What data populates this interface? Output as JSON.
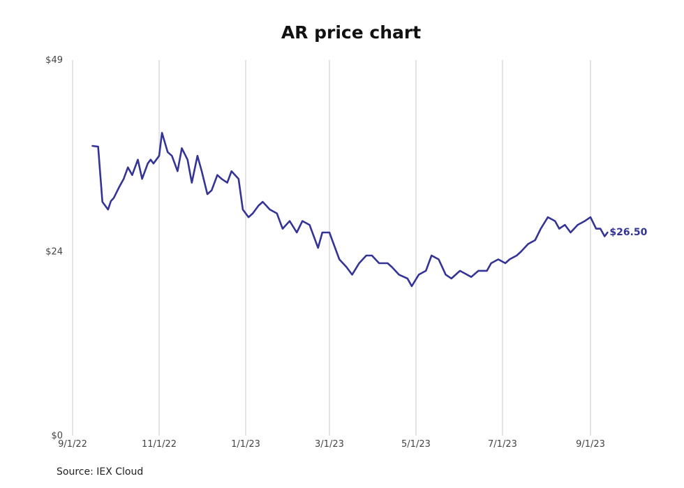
{
  "chart_data": {
    "type": "line",
    "title": "AR price chart",
    "source": "Source: IEX Cloud",
    "x_ticks": [
      "9/1/22",
      "11/1/22",
      "1/1/23",
      "3/1/23",
      "5/1/23",
      "7/1/23",
      "9/1/23"
    ],
    "y_ticks": [
      "$0",
      "$24",
      "$49"
    ],
    "ylim": [
      0,
      49
    ],
    "xlim": [
      "2022-09-01",
      "2023-09-01"
    ],
    "grid": "vertical",
    "line_color": "#343496",
    "end_label": "$26.50",
    "series": [
      {
        "x": [
          "2022-09-15",
          "2022-09-19",
          "2022-09-22",
          "2022-09-26",
          "2022-09-28",
          "2022-09-30",
          "2022-10-04",
          "2022-10-07",
          "2022-10-10",
          "2022-10-13",
          "2022-10-17",
          "2022-10-20",
          "2022-10-24",
          "2022-10-26",
          "2022-10-28",
          "2022-11-01",
          "2022-11-03",
          "2022-11-07",
          "2022-11-10",
          "2022-11-14",
          "2022-11-17",
          "2022-11-21",
          "2022-11-24",
          "2022-11-28",
          "2022-12-01",
          "2022-12-05",
          "2022-12-08",
          "2022-12-12",
          "2022-12-15",
          "2022-12-19",
          "2022-12-22",
          "2022-12-27",
          "2022-12-30",
          "2023-01-03",
          "2023-01-06",
          "2023-01-10",
          "2023-01-13",
          "2023-01-18",
          "2023-01-23",
          "2023-01-27",
          "2023-02-01",
          "2023-02-06",
          "2023-02-10",
          "2023-02-15",
          "2023-02-21",
          "2023-02-24",
          "2023-03-01",
          "2023-03-03",
          "2023-03-08",
          "2023-03-13",
          "2023-03-17",
          "2023-03-22",
          "2023-03-27",
          "2023-03-31",
          "2023-04-05",
          "2023-04-11",
          "2023-04-14",
          "2023-04-19",
          "2023-04-25",
          "2023-04-28",
          "2023-05-03",
          "2023-05-08",
          "2023-05-12",
          "2023-05-17",
          "2023-05-22",
          "2023-05-26",
          "2023-06-01",
          "2023-06-06",
          "2023-06-09",
          "2023-06-14",
          "2023-06-20",
          "2023-06-23",
          "2023-06-28",
          "2023-07-03",
          "2023-07-06",
          "2023-07-11",
          "2023-07-14",
          "2023-07-19",
          "2023-07-24",
          "2023-07-28",
          "2023-08-02",
          "2023-08-07",
          "2023-08-10",
          "2023-08-14",
          "2023-08-18",
          "2023-08-23",
          "2023-08-28",
          "2023-09-01",
          "2023-09-05",
          "2023-09-08",
          "2023-09-11",
          "2023-09-13"
        ],
        "values": [
          37.8,
          37.7,
          30.5,
          29.5,
          30.6,
          31.0,
          32.5,
          33.5,
          35.0,
          34.0,
          36.0,
          33.5,
          35.5,
          36.0,
          35.5,
          36.5,
          39.5,
          37.0,
          36.5,
          34.5,
          37.5,
          36.0,
          33.0,
          36.5,
          34.5,
          31.5,
          32.0,
          34.0,
          33.5,
          33.0,
          34.5,
          33.5,
          29.5,
          28.5,
          29.0,
          30.0,
          30.5,
          29.5,
          29.0,
          27.0,
          28.0,
          26.5,
          28.0,
          27.5,
          24.5,
          26.5,
          26.5,
          25.5,
          23.0,
          22.0,
          21.0,
          22.5,
          23.5,
          23.5,
          22.5,
          22.5,
          22.0,
          21.0,
          20.5,
          19.5,
          21.0,
          21.5,
          23.5,
          23.0,
          21.0,
          20.5,
          21.5,
          21.0,
          20.7,
          21.5,
          21.5,
          22.5,
          23.0,
          22.5,
          23.0,
          23.5,
          24.0,
          25.0,
          25.5,
          27.0,
          28.5,
          28.0,
          27.0,
          27.5,
          26.5,
          27.5,
          28.0,
          28.5,
          27.0,
          27.0,
          26.0,
          26.5
        ]
      }
    ]
  }
}
